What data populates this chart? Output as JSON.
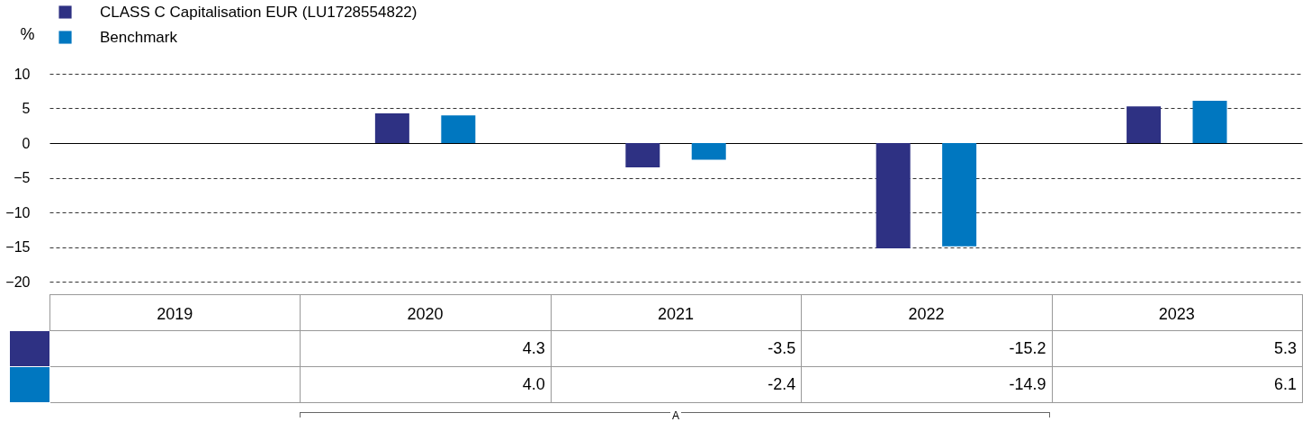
{
  "chart_data": {
    "type": "bar",
    "ylabel": "%",
    "categories": [
      "2019",
      "2020",
      "2021",
      "2022",
      "2023"
    ],
    "series": [
      {
        "name": "CLASS C Capitalisation EUR (LU1728554822)",
        "color": "#2e3183",
        "values": [
          null,
          4.3,
          -3.5,
          -15.2,
          5.3
        ],
        "value_labels": [
          null,
          "4.3",
          "-3.5",
          "-15.2",
          "5.3"
        ]
      },
      {
        "name": "Benchmark",
        "color": "#0077c0",
        "values": [
          null,
          4.0,
          -2.4,
          -14.9,
          6.1
        ],
        "value_labels": [
          null,
          "4.0",
          "-2.4",
          "-14.9",
          "6.1"
        ]
      }
    ],
    "ylim": [
      -20,
      10
    ],
    "yticks": [
      -20,
      -15,
      -10,
      -5,
      0,
      5,
      10
    ],
    "grid": "y",
    "legend": "top left",
    "annotations": [
      "A"
    ]
  }
}
